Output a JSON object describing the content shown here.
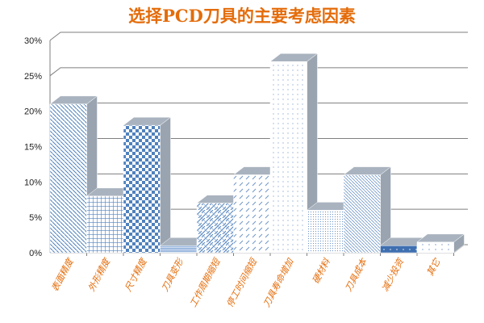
{
  "chart_data": {
    "type": "bar",
    "title": "选择PCD刀具的主要考虑因素",
    "categories": [
      "表面精度",
      "外形精度",
      "尺寸精度",
      "刀具变形",
      "工作周期缩短",
      "停工时间缩短",
      "刀具寿命增加",
      "硬材料",
      "刀具成本",
      "减少投资",
      "其它"
    ],
    "values": [
      21,
      8,
      18,
      1,
      7,
      11,
      27,
      6,
      11,
      1,
      1.5
    ],
    "unit": "%",
    "ylim": [
      0,
      30
    ],
    "yticks": [
      "0%",
      "5%",
      "10%",
      "15%",
      "20%",
      "25%",
      "30%"
    ],
    "xlabel": "",
    "ylabel": "",
    "grid": true,
    "style": "3d-column",
    "colors": {
      "title": "#E46C0A",
      "labels": "#E46C0A",
      "bar": "#4F81BD",
      "side": "#9AA4B0",
      "grid": "#7F7F7F"
    }
  }
}
